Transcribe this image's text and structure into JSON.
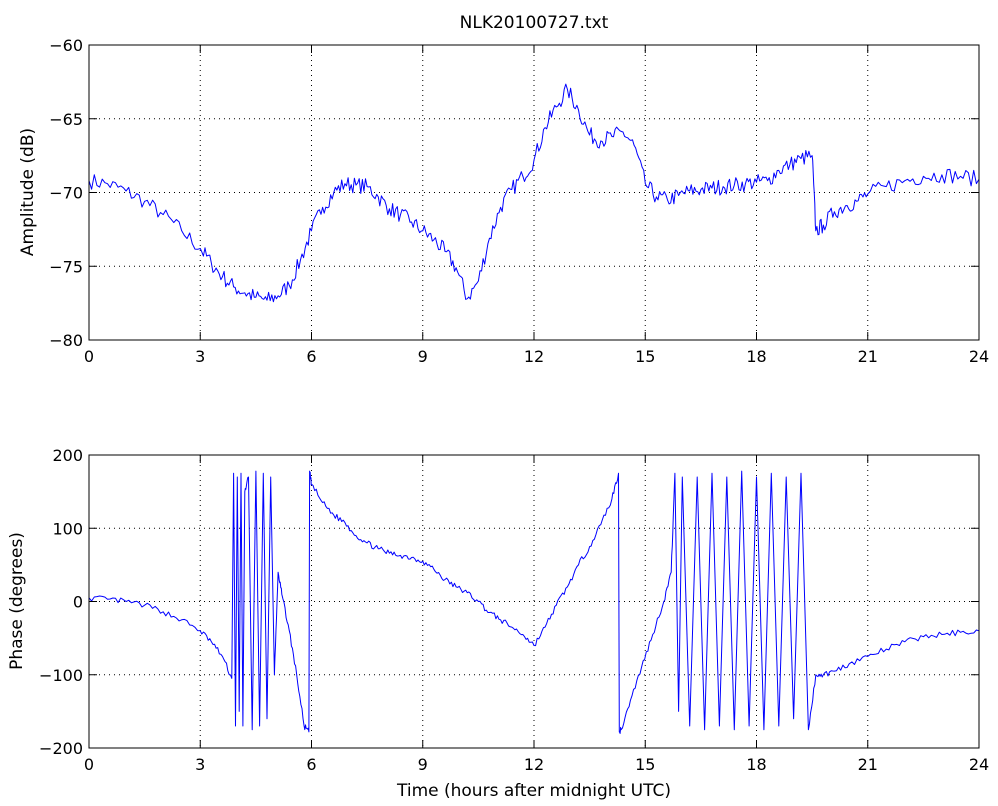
{
  "figure": {
    "background": "#ffffff",
    "line_color": "#0000ff",
    "grid_color": "#000000"
  },
  "chart_data": [
    {
      "type": "line",
      "title": "NLK20100727.txt",
      "xlabel": "",
      "ylabel": "Amplitude (dB)",
      "xlim": [
        0,
        24
      ],
      "ylim": [
        -80,
        -60
      ],
      "xticks": [
        "0",
        "3",
        "6",
        "9",
        "12",
        "15",
        "18",
        "21",
        "24"
      ],
      "yticks": [
        "-80",
        "-75",
        "-70",
        "-65",
        "-60"
      ],
      "grid": true,
      "series": [
        {
          "values_x": [
            0,
            0.5,
            1,
            1.5,
            2,
            2.5,
            3,
            3.3,
            3.6,
            3.9,
            4.2,
            4.5,
            4.8,
            5.1,
            5.4,
            5.7,
            6,
            6.3,
            6.6,
            6.9,
            7.2,
            7.5,
            7.8,
            8.1,
            8.4,
            8.7,
            9,
            9.3,
            9.6,
            9.9,
            10.2,
            10.5,
            10.8,
            11.1,
            11.4,
            11.7,
            12,
            12.3,
            12.6,
            12.9,
            13.2,
            13.5,
            13.8,
            14.1,
            14.4,
            14.7,
            15,
            15.3,
            15.6,
            15.9,
            16.2,
            16.5,
            16.8,
            17.1,
            17.4,
            17.7,
            18,
            18.3,
            18.6,
            18.9,
            19.2,
            19.5,
            19.6,
            19.8,
            20.1,
            20.4,
            20.7,
            21,
            21.5,
            22,
            22.5,
            23,
            23.5,
            24
          ],
          "values_y": [
            -69.2,
            -69.4,
            -69.9,
            -70.6,
            -71.5,
            -72.6,
            -73.8,
            -74.8,
            -75.7,
            -76.4,
            -76.8,
            -77.1,
            -77.3,
            -77.0,
            -76.3,
            -74.6,
            -72.6,
            -71.0,
            -70.0,
            -69.4,
            -69.5,
            -69.6,
            -70.3,
            -71.1,
            -71.5,
            -72.0,
            -72.6,
            -73.2,
            -74.0,
            -75.1,
            -77.2,
            -76.0,
            -73.1,
            -71.0,
            -69.8,
            -68.9,
            -67.8,
            -65.6,
            -64.2,
            -63.0,
            -64.4,
            -66.1,
            -66.5,
            -66.2,
            -65.9,
            -66.8,
            -69.4,
            -70.3,
            -70.5,
            -70.2,
            -69.9,
            -69.8,
            -69.7,
            -69.6,
            -69.5,
            -69.4,
            -69.3,
            -69.2,
            -68.5,
            -68.1,
            -67.7,
            -67.5,
            -72.6,
            -72.2,
            -71.3,
            -70.9,
            -70.6,
            -70.1,
            -69.6,
            -69.2,
            -68.9,
            -68.8,
            -68.9,
            -69.1
          ]
        }
      ]
    },
    {
      "type": "line",
      "title": "",
      "xlabel": "Time (hours after midnight UTC)",
      "ylabel": "Phase (degrees)",
      "xlim": [
        0,
        24
      ],
      "ylim": [
        -200,
        200
      ],
      "xticks": [
        "0",
        "3",
        "6",
        "9",
        "12",
        "15",
        "18",
        "21",
        "24"
      ],
      "yticks": [
        "-200",
        "-100",
        "0",
        "100",
        "200"
      ],
      "grid": true,
      "series": [
        {
          "values_x": [
            0,
            0.5,
            1,
            1.5,
            2,
            2.5,
            3,
            3.3,
            3.6,
            3.85,
            3.9,
            3.95,
            4.0,
            4.05,
            4.1,
            4.15,
            4.2,
            4.3,
            4.4,
            4.5,
            4.6,
            4.7,
            4.8,
            4.9,
            5.0,
            5.1,
            5.2,
            5.4,
            5.6,
            5.8,
            5.93,
            5.95,
            6.0,
            6.3,
            6.6,
            6.9,
            7.2,
            7.5,
            7.8,
            8.1,
            8.4,
            8.7,
            9,
            9.3,
            9.6,
            9.9,
            10.2,
            10.5,
            10.8,
            11.1,
            11.4,
            11.7,
            12,
            12.3,
            12.6,
            12.9,
            13.2,
            13.5,
            13.8,
            14.1,
            14.28,
            14.3,
            14.35,
            14.6,
            14.9,
            15.2,
            15.5,
            15.7,
            15.8,
            15.9,
            16.0,
            16.2,
            16.4,
            16.6,
            16.8,
            17.0,
            17.2,
            17.4,
            17.6,
            17.8,
            18.0,
            18.2,
            18.4,
            18.6,
            18.8,
            19.0,
            19.2,
            19.4,
            19.6,
            19.8,
            20.1,
            20.5,
            21,
            21.5,
            22,
            22.5,
            23,
            23.5,
            24
          ],
          "values_y": [
            5,
            3,
            0,
            -5,
            -14,
            -25,
            -40,
            -55,
            -75,
            -105,
            175,
            -170,
            170,
            -150,
            175,
            -170,
            150,
            170,
            -175,
            178,
            -170,
            175,
            -160,
            170,
            -100,
            40,
            10,
            -40,
            -100,
            -170,
            -178,
            178,
            160,
            135,
            118,
            108,
            90,
            80,
            72,
            66,
            63,
            60,
            55,
            44,
            30,
            20,
            12,
            0,
            -15,
            -25,
            -35,
            -45,
            -60,
            -35,
            -5,
            20,
            50,
            75,
            105,
            140,
            175,
            -178,
            -175,
            -135,
            -90,
            -45,
            0,
            40,
            175,
            -150,
            170,
            -170,
            170,
            -175,
            175,
            -170,
            170,
            -175,
            178,
            -170,
            170,
            -175,
            175,
            -170,
            170,
            -160,
            175,
            -175,
            -100,
            -100,
            -95,
            -85,
            -75,
            -65,
            -55,
            -48,
            -45,
            -42,
            -40
          ]
        }
      ]
    }
  ]
}
